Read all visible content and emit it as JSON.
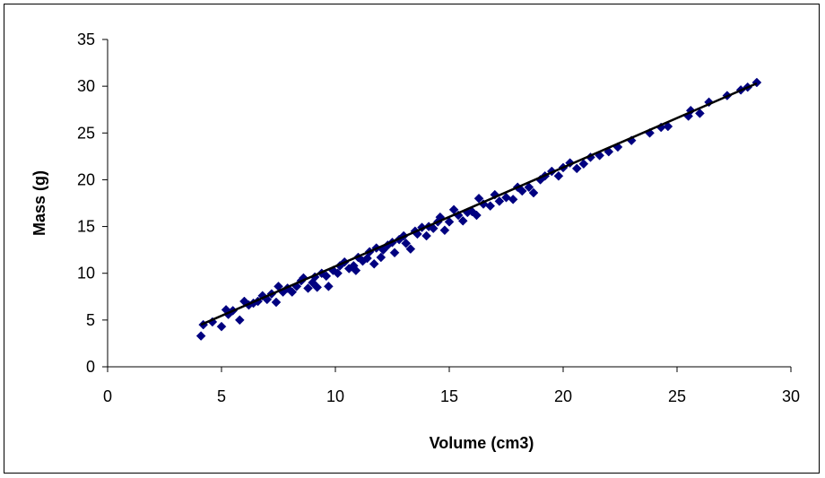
{
  "chart_data": {
    "type": "scatter",
    "title": "",
    "xlabel": "Volume (cm3)",
    "ylabel": "Mass (g)",
    "xlim": [
      0,
      30
    ],
    "ylim": [
      0,
      35
    ],
    "x_ticks": [
      0,
      5,
      10,
      15,
      20,
      25,
      30
    ],
    "y_ticks": [
      0,
      5,
      10,
      15,
      20,
      25,
      30,
      35
    ],
    "grid": false,
    "legend": "none",
    "marker": "diamond",
    "marker_color": "#000080",
    "trendline": {
      "type": "linear",
      "x": [
        4.1,
        28.5
      ],
      "y": [
        4.5,
        30.3
      ],
      "color": "#000000"
    },
    "series": [
      {
        "x": [
          4.1,
          4.2,
          4.6,
          5.0,
          5.2,
          5.3,
          5.5,
          5.8,
          6.0,
          6.2,
          6.4,
          6.6,
          6.8,
          7.0,
          7.2,
          7.4,
          7.5,
          7.7,
          7.9,
          8.1,
          8.3,
          8.5,
          8.6,
          8.8,
          9.0,
          9.1,
          9.2,
          9.4,
          9.6,
          9.7,
          9.9,
          10.1,
          10.2,
          10.4,
          10.6,
          10.8,
          10.9,
          11.0,
          11.2,
          11.4,
          11.5,
          11.7,
          11.8,
          12.0,
          12.1,
          12.3,
          12.5,
          12.6,
          12.8,
          13.0,
          13.1,
          13.3,
          13.5,
          13.6,
          13.8,
          14.0,
          14.1,
          14.3,
          14.5,
          14.6,
          14.8,
          15.0,
          15.2,
          15.4,
          15.6,
          15.8,
          16.0,
          16.2,
          16.3,
          16.5,
          16.8,
          17.0,
          17.2,
          17.5,
          17.8,
          18.0,
          18.2,
          18.5,
          18.7,
          19.0,
          19.2,
          19.5,
          19.8,
          20.0,
          20.3,
          20.6,
          20.9,
          21.2,
          21.6,
          22.0,
          22.4,
          23.0,
          23.8,
          24.3,
          24.6,
          25.5,
          25.6,
          26.0,
          26.4,
          27.2,
          27.8,
          28.1,
          28.5
        ],
        "y": [
          3.3,
          4.5,
          4.8,
          4.3,
          6.1,
          5.6,
          6.0,
          5.0,
          7.0,
          6.6,
          6.8,
          7.0,
          7.6,
          7.2,
          7.8,
          6.9,
          8.6,
          8.0,
          8.4,
          8.0,
          8.6,
          9.2,
          9.5,
          8.4,
          9.0,
          9.6,
          8.5,
          10.0,
          9.7,
          8.6,
          10.3,
          10.0,
          10.8,
          11.2,
          10.5,
          10.8,
          10.3,
          11.7,
          11.3,
          11.6,
          12.3,
          11.0,
          12.7,
          11.7,
          12.5,
          13.0,
          13.3,
          12.2,
          13.6,
          14.0,
          13.2,
          12.6,
          14.5,
          14.2,
          14.9,
          14.0,
          15.0,
          14.8,
          15.5,
          16.0,
          14.6,
          15.5,
          16.8,
          16.2,
          15.6,
          16.5,
          16.6,
          16.2,
          18.0,
          17.4,
          17.2,
          18.4,
          17.7,
          18.1,
          17.9,
          19.2,
          18.8,
          19.2,
          18.6,
          20.0,
          20.4,
          20.9,
          20.4,
          21.3,
          21.8,
          21.2,
          21.7,
          22.4,
          22.6,
          23.0,
          23.5,
          24.2,
          25.0,
          25.6,
          25.7,
          26.8,
          27.4,
          27.1,
          28.3,
          29.0,
          29.6,
          29.9,
          30.4
        ]
      }
    ]
  }
}
